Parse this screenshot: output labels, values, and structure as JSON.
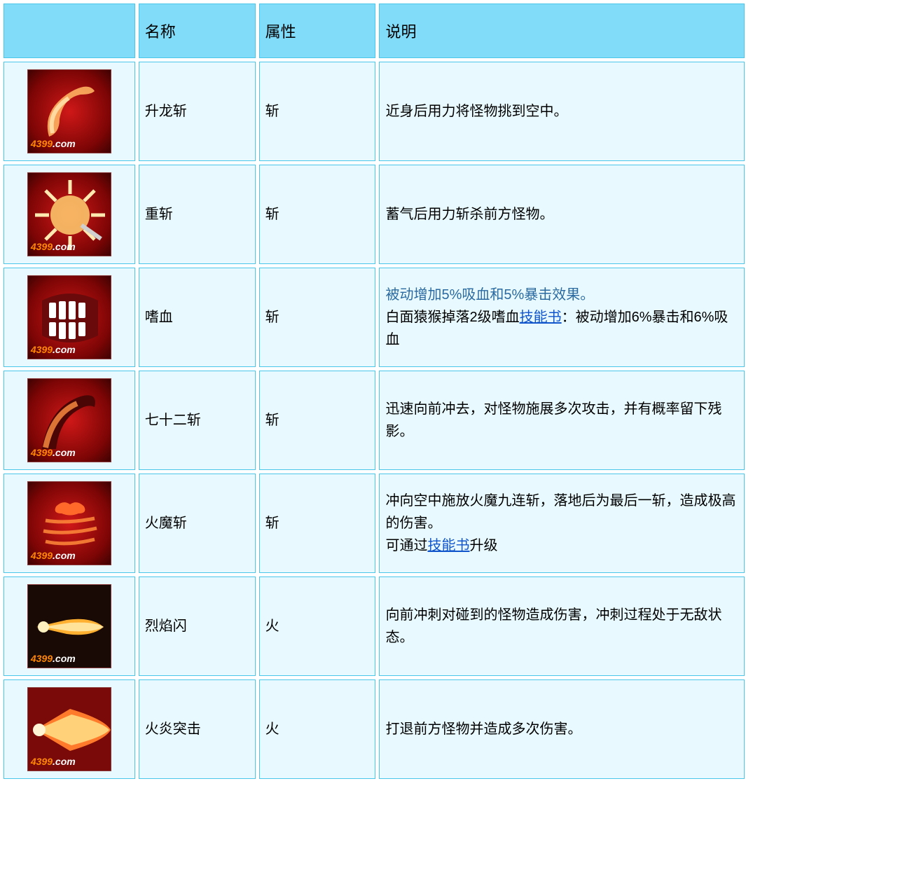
{
  "table": {
    "headers": {
      "icon": "",
      "name": "名称",
      "attr": "属性",
      "desc": "说明"
    },
    "watermark": {
      "num": "4399",
      "dotcom": ".com"
    },
    "colors": {
      "header_bg": "#80dcf8",
      "cell_bg": "#e8faff",
      "border": "#49c6ea",
      "link": "#1155cc",
      "highlight": "#2a6aa0",
      "icon_bg_inner": "#d01818",
      "icon_bg_outer": "#3e0202"
    },
    "rows": [
      {
        "icon": "rising-dragon",
        "name": "升龙斩",
        "attr": "斩",
        "desc_plain": "近身后用力将怪物挑到空中。"
      },
      {
        "icon": "heavy-slash",
        "name": "重斩",
        "attr": "斩",
        "desc_plain": "蓄气后用力斩杀前方怪物。"
      },
      {
        "icon": "bloodthirst",
        "name": "嗜血",
        "attr": "斩",
        "desc_highlight": "被动增加5%吸血和5%暴击效果。",
        "desc_pre": "白面猿猴掉落2级嗜血",
        "desc_link": "技能书",
        "desc_post": "：被动增加6%暴击和6%吸血"
      },
      {
        "icon": "seventy-two-slash",
        "name": "七十二斩",
        "attr": "斩",
        "desc_plain": "迅速向前冲去，对怪物施展多次攻击，并有概率留下残影。"
      },
      {
        "icon": "fire-demon-slash",
        "name": "火魔斩",
        "attr": "斩",
        "desc_pre": "冲向空中施放火魔九连斩，落地后为最后一斩，造成极高的伤害。",
        "desc_pre2": "可通过",
        "desc_link": "技能书",
        "desc_post": "升级"
      },
      {
        "icon": "flame-flash",
        "name": "烈焰闪",
        "attr": "火",
        "desc_plain": "向前冲刺对碰到的怪物造成伤害，冲刺过程处于无敌状态。"
      },
      {
        "icon": "flame-assault",
        "name": "火炎突击",
        "attr": "火",
        "desc_plain": "打退前方怪物并造成多次伤害。"
      }
    ]
  }
}
